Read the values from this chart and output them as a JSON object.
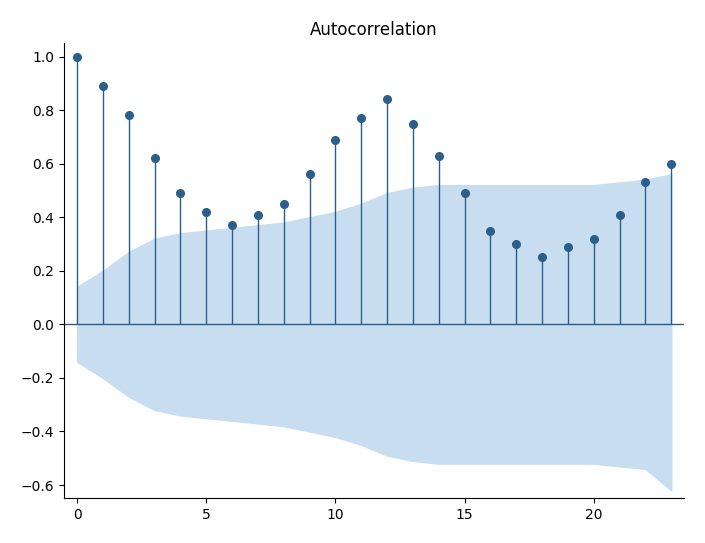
{
  "title": "Autocorrelation",
  "acf_values": [
    1.0,
    0.89,
    0.78,
    0.62,
    0.49,
    0.42,
    0.37,
    0.41,
    0.45,
    0.56,
    0.69,
    0.77,
    0.84,
    0.75,
    0.63,
    0.49,
    0.35,
    0.3,
    0.25,
    0.29,
    0.32,
    0.41,
    0.53,
    0.6
  ],
  "conf_upper": [
    0.14,
    0.2,
    0.27,
    0.32,
    0.34,
    0.35,
    0.36,
    0.37,
    0.38,
    0.4,
    0.42,
    0.45,
    0.49,
    0.51,
    0.52,
    0.52,
    0.52,
    0.52,
    0.52,
    0.52,
    0.52,
    0.53,
    0.54,
    0.56
  ],
  "conf_lower": [
    -0.14,
    -0.2,
    -0.27,
    -0.32,
    -0.34,
    -0.35,
    -0.36,
    -0.37,
    -0.38,
    -0.4,
    -0.42,
    -0.45,
    -0.49,
    -0.51,
    -0.52,
    -0.52,
    -0.52,
    -0.52,
    -0.52,
    -0.52,
    -0.52,
    -0.53,
    -0.54,
    -0.62
  ],
  "line_color": "#2b5f8a",
  "fill_color": "#c8ddf0",
  "ylim": [
    -0.65,
    1.05
  ],
  "xlim": [
    -0.5,
    23.5
  ],
  "figsize": [
    7.05,
    5.43
  ],
  "dpi": 100,
  "title_fontsize": 12
}
